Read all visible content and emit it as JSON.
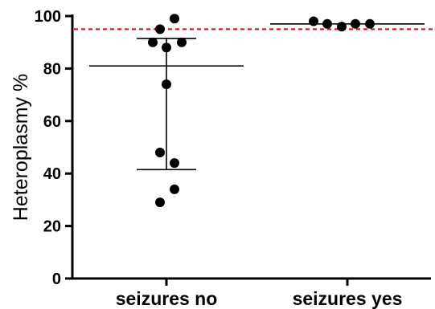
{
  "chart_data": {
    "type": "scatter",
    "ylabel": "Heteroplasmy %",
    "ylim": [
      0,
      100
    ],
    "yticks": [
      0,
      20,
      40,
      60,
      80,
      100
    ],
    "y_tick_labels": [
      "0",
      "20",
      "40",
      "60",
      "80",
      "100"
    ],
    "categories": [
      "seizures no",
      "seizures yes"
    ],
    "groups": [
      {
        "category": "seizures no",
        "points": [
          99,
          95,
          90,
          88,
          90,
          74,
          48,
          44,
          34,
          29
        ],
        "center": 81,
        "error_low": 41.5,
        "error_high": 91.5
      },
      {
        "category": "seizures yes",
        "points": [
          98,
          97,
          96,
          97,
          97
        ],
        "center": 97,
        "error_low": 97,
        "error_high": 97
      }
    ],
    "reference_line": {
      "y": 95,
      "color": "#e0191d",
      "style": "dashed"
    },
    "grid": false,
    "colors": {
      "points": "#000000",
      "axes": "#000000"
    }
  }
}
